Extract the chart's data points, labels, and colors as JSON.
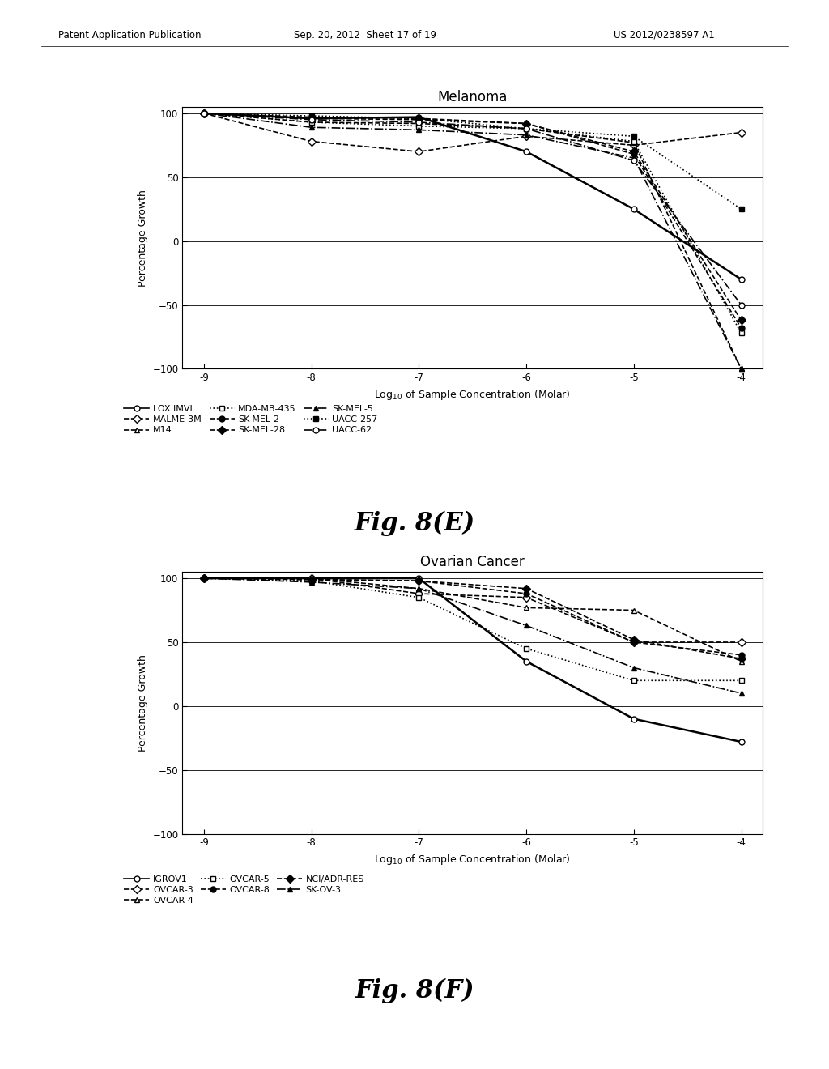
{
  "melanoma": {
    "title": "Melanoma",
    "series": [
      {
        "name": "LOX IMVI",
        "x": [
          -9,
          -8,
          -7,
          -6,
          -5,
          -4
        ],
        "y": [
          100,
          96,
          97,
          70,
          25,
          -30
        ],
        "linestyle": "-",
        "marker": "o",
        "markerfilled": false,
        "lw": 1.8
      },
      {
        "name": "MALME-3M",
        "x": [
          -9,
          -8,
          -7,
          -6,
          -5,
          -4
        ],
        "y": [
          100,
          78,
          70,
          82,
          75,
          85
        ],
        "linestyle": "--",
        "marker": "D",
        "markerfilled": false,
        "lw": 1.2
      },
      {
        "name": "M14",
        "x": [
          -9,
          -8,
          -7,
          -6,
          -5,
          -4
        ],
        "y": [
          100,
          93,
          92,
          88,
          77,
          -100
        ],
        "linestyle": "--",
        "marker": "^",
        "markerfilled": false,
        "lw": 1.2
      },
      {
        "name": "MDA-MB-435",
        "x": [
          -9,
          -8,
          -7,
          -6,
          -5,
          -4
        ],
        "y": [
          100,
          93,
          90,
          88,
          78,
          -72
        ],
        "linestyle": ":",
        "marker": "s",
        "markerfilled": false,
        "lw": 1.2
      },
      {
        "name": "SK-MEL-2",
        "x": [
          -9,
          -8,
          -7,
          -6,
          -5,
          -4
        ],
        "y": [
          100,
          96,
          95,
          92,
          68,
          -68
        ],
        "linestyle": "--",
        "marker": "o",
        "markerfilled": true,
        "lw": 1.2
      },
      {
        "name": "SK-MEL-28",
        "x": [
          -9,
          -8,
          -7,
          -6,
          -5,
          -4
        ],
        "y": [
          100,
          97,
          96,
          92,
          70,
          -62
        ],
        "linestyle": "--",
        "marker": "D",
        "markerfilled": true,
        "lw": 1.2
      },
      {
        "name": "SK-MEL-5",
        "x": [
          -9,
          -8,
          -7,
          -6,
          -5,
          -4
        ],
        "y": [
          100,
          89,
          87,
          83,
          65,
          -100
        ],
        "linestyle": "-.",
        "marker": "^",
        "markerfilled": true,
        "lw": 1.2
      },
      {
        "name": "UACC-257",
        "x": [
          -9,
          -8,
          -7,
          -6,
          -5,
          -4
        ],
        "y": [
          100,
          98,
          96,
          88,
          82,
          25
        ],
        "linestyle": ":",
        "marker": "s",
        "markerfilled": true,
        "lw": 1.2
      },
      {
        "name": "UACC-62",
        "x": [
          -9,
          -8,
          -7,
          -6,
          -5,
          -4
        ],
        "y": [
          100,
          95,
          93,
          88,
          63,
          -50
        ],
        "linestyle": "-.",
        "marker": "o",
        "markerfilled": false,
        "lw": 1.2
      }
    ],
    "legend_order": [
      [
        "LOX IMVI",
        "-",
        "o",
        false
      ],
      [
        "MALME-3M",
        "--",
        "D",
        false
      ],
      [
        "M14",
        "--",
        "^",
        false
      ],
      [
        "MDA-MB-435",
        ":",
        "s",
        false
      ],
      [
        "SK-MEL-2",
        "--",
        "o",
        true
      ],
      [
        "SK-MEL-28",
        "--",
        "D",
        true
      ],
      [
        "SK-MEL-5",
        "-.",
        "^",
        true
      ],
      [
        "UACC-257",
        ":",
        "s",
        true
      ],
      [
        "UACC-62",
        "-.",
        "o",
        false
      ]
    ]
  },
  "ovarian": {
    "title": "Ovarian Cancer",
    "series": [
      {
        "name": "IGROV1",
        "x": [
          -9,
          -8,
          -7,
          -6,
          -5,
          -4
        ],
        "y": [
          100,
          100,
          100,
          35,
          -10,
          -28
        ],
        "linestyle": "-",
        "marker": "o",
        "markerfilled": false,
        "lw": 1.8
      },
      {
        "name": "OVCAR-3",
        "x": [
          -9,
          -8,
          -7,
          -6,
          -5,
          -4
        ],
        "y": [
          100,
          100,
          88,
          85,
          50,
          50
        ],
        "linestyle": "--",
        "marker": "D",
        "markerfilled": false,
        "lw": 1.2
      },
      {
        "name": "OVCAR-4",
        "x": [
          -9,
          -8,
          -7,
          -6,
          -5,
          -4
        ],
        "y": [
          100,
          100,
          92,
          77,
          75,
          35
        ],
        "linestyle": "--",
        "marker": "^",
        "markerfilled": false,
        "lw": 1.2
      },
      {
        "name": "OVCAR-5",
        "x": [
          -9,
          -8,
          -7,
          -6,
          -5,
          -4
        ],
        "y": [
          100,
          98,
          85,
          45,
          20,
          20
        ],
        "linestyle": ":",
        "marker": "s",
        "markerfilled": false,
        "lw": 1.2
      },
      {
        "name": "OVCAR-8",
        "x": [
          -9,
          -8,
          -7,
          -6,
          -5,
          -4
        ],
        "y": [
          100,
          99,
          98,
          88,
          50,
          40
        ],
        "linestyle": "--",
        "marker": "o",
        "markerfilled": true,
        "lw": 1.2
      },
      {
        "name": "NCI/ADR-RES",
        "x": [
          -9,
          -8,
          -7,
          -6,
          -5,
          -4
        ],
        "y": [
          100,
          99,
          98,
          92,
          52,
          37
        ],
        "linestyle": "--",
        "marker": "D",
        "markerfilled": true,
        "lw": 1.2
      },
      {
        "name": "SK-OV-3",
        "x": [
          -9,
          -8,
          -7,
          -6,
          -5,
          -4
        ],
        "y": [
          100,
          97,
          92,
          63,
          30,
          10
        ],
        "linestyle": "-.",
        "marker": "^",
        "markerfilled": true,
        "lw": 1.2
      }
    ],
    "legend_order": [
      [
        "IGROV1",
        "-",
        "o",
        false
      ],
      [
        "OVCAR-3",
        "--",
        "D",
        false
      ],
      [
        "OVCAR-4",
        "--",
        "^",
        false
      ],
      [
        "OVCAR-5",
        ":",
        "s",
        false
      ],
      [
        "OVCAR-8",
        "--",
        "o",
        true
      ],
      [
        "NCI/ADR-RES",
        "--",
        "D",
        true
      ],
      [
        "SK-OV-3",
        "-.",
        "^",
        true
      ]
    ]
  },
  "xlabel": "Log$_{10}$ of Sample Concentration (Molar)",
  "ylabel": "Percentage Growth",
  "xlim": [
    -9.2,
    -3.8
  ],
  "ylim": [
    -100,
    105
  ],
  "xticks": [
    -9,
    -8,
    -7,
    -6,
    -5,
    -4
  ],
  "xticklabels": [
    "-9",
    "-8",
    "-7",
    "-6",
    "-5",
    "-4"
  ],
  "yticks": [
    -100,
    -50,
    0,
    50,
    100
  ],
  "fig_label_E": "Fig. 8(E)",
  "fig_label_F": "Fig. 8(F)",
  "header_left": "Patent Application Publication",
  "header_mid": "Sep. 20, 2012  Sheet 17 of 19",
  "header_right": "US 2012/0238597 A1"
}
